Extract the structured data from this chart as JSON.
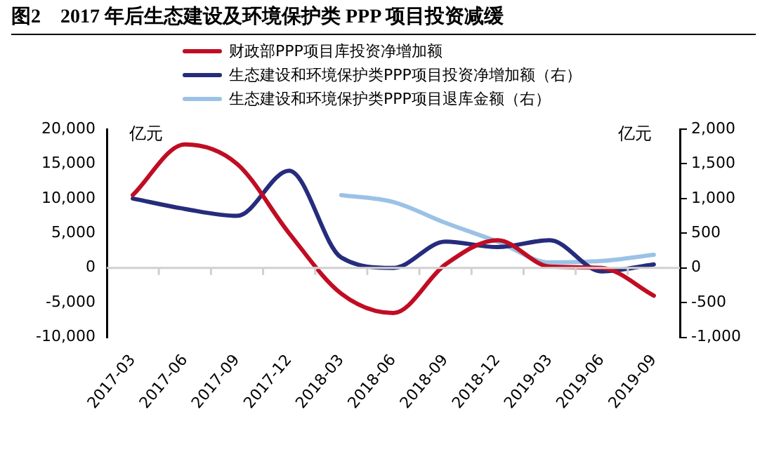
{
  "chart_data": {
    "type": "line",
    "title": "图2　2017 年后生态建设及环境保护类 PPP 项目投资减缓",
    "ylabel": "亿元",
    "y2label": "亿元",
    "categories": [
      "2017-03",
      "2017-06",
      "2017-09",
      "2017-12",
      "2018-03",
      "2018-06",
      "2018-09",
      "2018-12",
      "2019-03",
      "2019-06",
      "2019-09"
    ],
    "series": [
      {
        "name": "财政部PPP项目库投资净增加额",
        "color": "#c00d23",
        "values": [
          10500,
          17800,
          15000,
          5000,
          -3700,
          -6500,
          500,
          4000,
          200,
          0,
          -4000
        ]
      },
      {
        "name": "生态建设和环境保护类PPP项目投资净增加额（右）",
        "color": "#262c7c",
        "axis": "y2",
        "values": [
          1000,
          850,
          750,
          1400,
          150,
          0,
          380,
          300,
          400,
          -50,
          50
        ]
      },
      {
        "name": "生态建设和环境保护类PPP项目退库金额（右）",
        "color": "#9bc2e6",
        "axis": "y2",
        "values": [
          null,
          null,
          null,
          null,
          1050,
          950,
          650,
          380,
          80,
          100,
          190
        ]
      }
    ],
    "ylim": [
      -10000,
      20000
    ],
    "yticks": [
      {
        "value": -10000,
        "label": "-10,000"
      },
      {
        "value": -5000,
        "label": "-5,000"
      },
      0,
      {
        "value": 5000,
        "label": "5,000"
      },
      {
        "value": 10000,
        "label": "10,000"
      },
      {
        "value": 15000,
        "label": "15,000"
      },
      {
        "value": 20000,
        "label": "20,000"
      }
    ],
    "y2lim": [
      -1000,
      2000
    ],
    "y2ticks": [
      {
        "value": -1000,
        "label": "-1,000"
      },
      -500,
      0,
      500,
      {
        "value": 1000,
        "label": "1,000"
      },
      {
        "value": 1500,
        "label": "1,500"
      },
      {
        "value": 2000,
        "label": "2,000"
      }
    ],
    "ref_lines": [
      {
        "axis": "y",
        "value": 0,
        "color": "#d0d0d0"
      }
    ],
    "legend": "top",
    "grid": false,
    "marker": "none",
    "line_style": "solid"
  }
}
